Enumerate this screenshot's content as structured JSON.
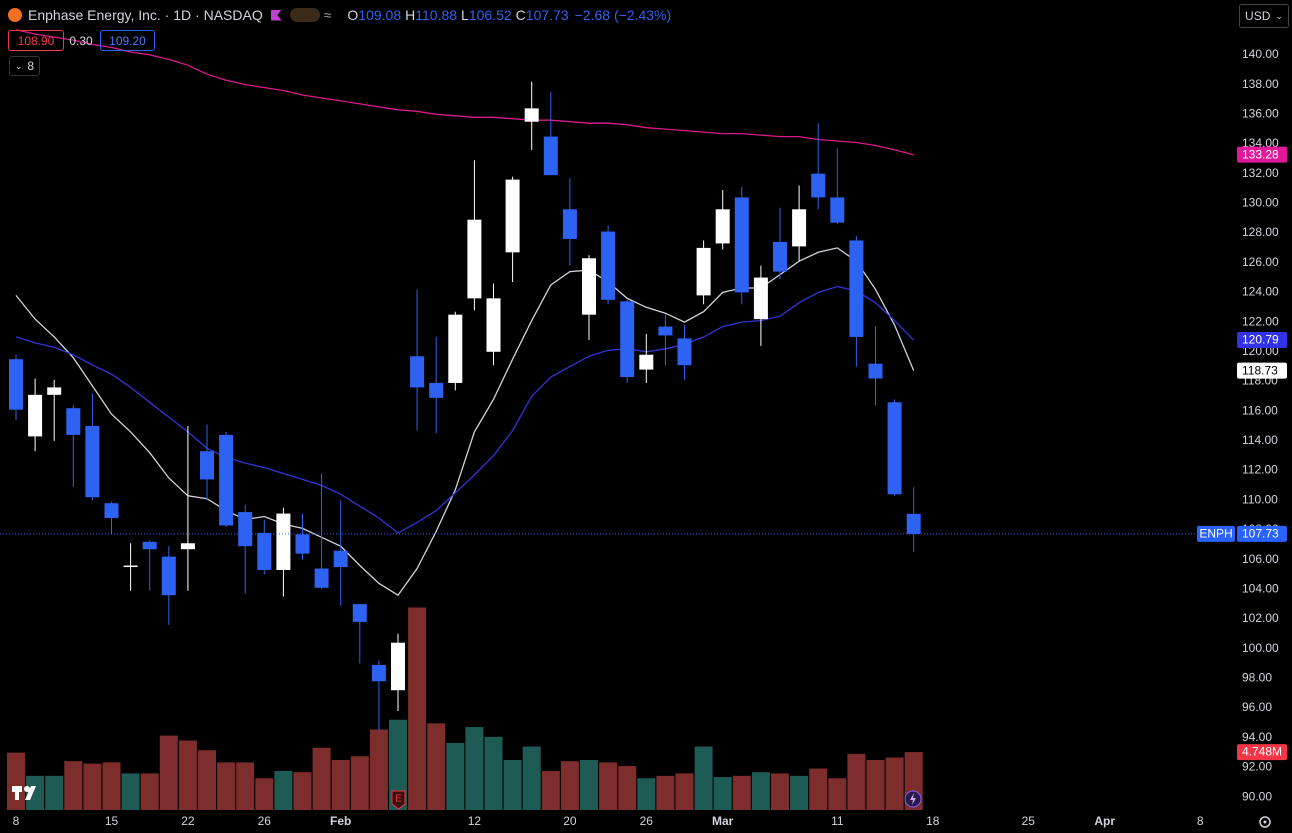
{
  "chart_data": {
    "type": "candlestick",
    "title": "Enphase Energy, Inc. · 1D · NASDAQ",
    "symbol": "ENPH",
    "currency": "USD",
    "ohlc_letters": [
      "O",
      "H",
      "L",
      "C"
    ],
    "change": "−2.68 (−2.43%)",
    "bid": "108.90",
    "spread": "0.30",
    "ask": "109.20",
    "indicator_count": "8",
    "earnings_marker": "E",
    "categories": [
      "8",
      null,
      null,
      null,
      null,
      "15",
      null,
      null,
      null,
      "22",
      null,
      null,
      null,
      "26",
      null,
      null,
      null,
      "Feb",
      null,
      null,
      null,
      null,
      null,
      null,
      "12",
      null,
      null,
      null,
      null,
      "20",
      null,
      null,
      null,
      "26",
      null,
      null,
      null,
      "Mar",
      null,
      null,
      null,
      null,
      null,
      "11",
      null,
      null,
      null,
      null,
      "18",
      null,
      null,
      null,
      null,
      "25",
      null,
      null,
      null,
      "Apr",
      null,
      null,
      null,
      null,
      "8"
    ],
    "open": [
      119.5,
      114.3,
      117.1,
      116.2,
      115.0,
      109.8,
      105.5,
      107.2,
      106.2,
      106.7,
      113.3,
      114.4,
      109.2,
      107.8,
      105.3,
      107.7,
      105.4,
      106.6,
      103.0,
      98.9,
      97.2,
      119.7,
      117.9,
      117.9,
      123.6,
      120.0,
      126.7,
      135.5,
      134.5,
      129.6,
      122.5,
      128.1,
      123.4,
      118.8,
      121.7,
      120.9,
      123.8,
      127.3,
      130.4,
      122.2,
      127.4,
      127.1,
      132.0,
      130.4,
      127.5,
      119.2,
      116.6,
      109.08,
      null,
      null,
      null,
      null,
      null,
      null,
      null,
      null,
      null,
      null,
      null,
      null,
      null,
      null,
      null
    ],
    "high": [
      119.8,
      118.2,
      118.1,
      116.4,
      117.2,
      109.9,
      107.1,
      107.3,
      106.9,
      115.0,
      115.1,
      114.6,
      109.7,
      108.7,
      109.5,
      109.1,
      111.8,
      110.0,
      103.0,
      99.2,
      101.0,
      124.2,
      121.0,
      122.7,
      132.9,
      124.6,
      131.8,
      138.2,
      137.5,
      131.7,
      126.5,
      128.5,
      123.5,
      121.2,
      122.5,
      121.8,
      127.5,
      130.9,
      131.1,
      125.8,
      129.7,
      131.2,
      135.4,
      133.7,
      127.8,
      121.7,
      116.8,
      110.88,
      null,
      null,
      null,
      null,
      null,
      null,
      null,
      null,
      null,
      null,
      null,
      null,
      null,
      null,
      null
    ],
    "low": [
      115.4,
      113.3,
      114.0,
      110.9,
      110.0,
      107.7,
      103.9,
      103.9,
      101.6,
      103.9,
      110.0,
      108.2,
      103.7,
      105.0,
      103.5,
      106.0,
      104.0,
      102.9,
      99.0,
      94.5,
      95.8,
      114.7,
      114.5,
      117.4,
      122.8,
      119.1,
      124.7,
      133.6,
      131.9,
      125.8,
      120.8,
      123.2,
      117.9,
      117.9,
      119.1,
      118.1,
      123.2,
      126.9,
      123.2,
      120.4,
      124.9,
      126.1,
      129.6,
      128.6,
      119.0,
      116.4,
      110.3,
      106.52,
      null,
      null,
      null,
      null,
      null,
      null,
      null,
      null,
      null,
      null,
      null,
      null,
      null,
      null,
      null
    ],
    "close": [
      116.1,
      117.1,
      117.6,
      114.4,
      110.2,
      108.8,
      105.6,
      106.7,
      103.6,
      107.1,
      111.4,
      108.3,
      106.9,
      105.3,
      109.1,
      106.4,
      104.1,
      105.5,
      101.8,
      97.8,
      100.4,
      117.6,
      116.9,
      122.5,
      128.9,
      123.6,
      131.6,
      136.4,
      131.9,
      127.6,
      126.3,
      123.5,
      118.3,
      119.8,
      121.1,
      119.1,
      127.0,
      129.6,
      124.0,
      125.0,
      125.4,
      129.6,
      130.4,
      128.7,
      121.0,
      118.2,
      110.4,
      107.73,
      null,
      null,
      null,
      null,
      null,
      null,
      null,
      null,
      null,
      null,
      null,
      null,
      null,
      null,
      null
    ],
    "up_color": "#ffffff",
    "down_color": "#2e62f2",
    "series": [
      {
        "color": "#d81b8c",
        "values": [
          141.7,
          141.4,
          141.2,
          141.0,
          140.7,
          140.5,
          140.2,
          140.0,
          139.7,
          139.3,
          138.7,
          138.3,
          138.0,
          137.8,
          137.6,
          137.3,
          137.1,
          136.9,
          136.7,
          136.5,
          136.3,
          136.2,
          136.0,
          135.9,
          135.8,
          135.8,
          135.7,
          135.6,
          135.6,
          135.5,
          135.4,
          135.4,
          135.3,
          135.1,
          135.0,
          134.9,
          134.8,
          134.7,
          134.7,
          134.6,
          134.5,
          134.5,
          134.3,
          134.2,
          134.1,
          133.9,
          133.6,
          133.28,
          null,
          null,
          null,
          null,
          null,
          null,
          null,
          null,
          null,
          null,
          null,
          null,
          null,
          null,
          null
        ],
        "tag_color": "#e0199a",
        "tag_text": "#ffffff"
      },
      {
        "color": "#d1d4dc",
        "values": [
          123.8,
          122.2,
          121.0,
          119.6,
          117.7,
          115.8,
          114.6,
          113.2,
          111.5,
          110.3,
          110.1,
          109.3,
          108.7,
          108.9,
          108.4,
          108.1,
          107.5,
          106.9,
          105.6,
          104.4,
          103.6,
          105.4,
          107.9,
          110.7,
          114.6,
          116.8,
          119.5,
          122.1,
          124.5,
          125.4,
          125.5,
          124.7,
          123.6,
          123.0,
          122.6,
          122.0,
          122.7,
          124.0,
          124.3,
          124.3,
          125.2,
          126.1,
          126.7,
          127.0,
          126.1,
          124.2,
          121.8,
          118.73,
          null,
          null,
          null,
          null,
          null,
          null,
          null,
          null,
          null,
          null,
          null,
          null,
          null,
          null,
          null
        ],
        "tag_color": "#ffffff",
        "tag_text": "#000000"
      },
      {
        "color": "#2f36d6",
        "values": [
          121.0,
          120.6,
          120.3,
          119.8,
          119.1,
          118.5,
          117.6,
          116.6,
          115.6,
          114.6,
          113.5,
          112.9,
          112.5,
          112.2,
          111.8,
          111.4,
          111.0,
          110.4,
          109.6,
          108.8,
          107.8,
          108.5,
          109.3,
          110.5,
          111.7,
          113.0,
          114.7,
          117.0,
          118.3,
          119.0,
          119.7,
          120.1,
          120.2,
          120.0,
          120.2,
          120.5,
          121.0,
          121.7,
          122.0,
          122.1,
          122.4,
          123.3,
          124.0,
          124.4,
          124.1,
          123.3,
          122.1,
          120.79,
          null,
          null,
          null,
          null,
          null,
          null,
          null,
          null,
          null,
          null,
          null,
          null,
          null,
          null,
          null
        ],
        "tag_color": "#3232e6",
        "tag_text": "#ffffff"
      }
    ],
    "volume": {
      "values": [
        4.7,
        2.8,
        2.8,
        4.0,
        3.8,
        3.9,
        3.0,
        3.0,
        6.1,
        5.7,
        4.9,
        3.9,
        3.9,
        2.6,
        3.2,
        3.1,
        5.1,
        4.1,
        4.4,
        6.6,
        7.4,
        16.6,
        7.1,
        5.5,
        6.8,
        6.0,
        4.1,
        5.2,
        3.2,
        4.0,
        4.1,
        3.9,
        3.6,
        2.6,
        2.8,
        3.0,
        5.2,
        2.7,
        2.8,
        3.1,
        3.0,
        2.8,
        3.4,
        2.6,
        4.6,
        4.1,
        4.3,
        4.748,
        null,
        null,
        null,
        null,
        null,
        null,
        null,
        null,
        null,
        null,
        null,
        null,
        null,
        null,
        null
      ],
      "value_labels": [
        null,
        null,
        null,
        null,
        null,
        null,
        null,
        null,
        null,
        null,
        null,
        null,
        null,
        null,
        null,
        null,
        null,
        null,
        null,
        null,
        null,
        null,
        null,
        null,
        null,
        null,
        null,
        null,
        null,
        null,
        null,
        null,
        null,
        null,
        null,
        null,
        null,
        null,
        null,
        null,
        null,
        null,
        null,
        null,
        null,
        null,
        null,
        "4.748M",
        null,
        null,
        null,
        null,
        null,
        null,
        null,
        null,
        null,
        null,
        null,
        null,
        null,
        null,
        null
      ],
      "colors": [
        "#7d2e2c",
        "#1e5b55",
        "#1e5b55",
        "#7d2e2c",
        "#7d2e2c",
        "#7d2e2c",
        "#1e5b55",
        "#7d2e2c",
        "#7d2e2c",
        "#7d2e2c",
        "#7d2e2c",
        "#7d2e2c",
        "#7d2e2c",
        "#7d2e2c",
        "#1e5b55",
        "#7d2e2c",
        "#7d2e2c",
        "#7d2e2c",
        "#7d2e2c",
        "#7d2e2c",
        "#1e5b55",
        "#7d2e2c",
        "#7d2e2c",
        "#1e5b55",
        "#1e5b55",
        "#1e5b55",
        "#1e5b55",
        "#1e5b55",
        "#7d2e2c",
        "#7d2e2c",
        "#1e5b55",
        "#7d2e2c",
        "#7d2e2c",
        "#1e5b55",
        "#7d2e2c",
        "#7d2e2c",
        "#1e5b55",
        "#1e5b55",
        "#7d2e2c",
        "#1e5b55",
        "#7d2e2c",
        "#1e5b55",
        "#7d2e2c",
        "#7d2e2c",
        "#7d2e2c",
        "#7d2e2c",
        "#7d2e2c",
        "#7d2e2c",
        null,
        null,
        null,
        null,
        null,
        null,
        null,
        null,
        null,
        null,
        null,
        null,
        null,
        null,
        null
      ],
      "tag_color": "#f23645"
    },
    "ylim": [
      89.13,
      143.7
    ],
    "yticks": [
      {
        "value": 90,
        "label": "90.00"
      },
      {
        "value": 92,
        "label": "92.00"
      },
      {
        "value": 94,
        "label": "94.00"
      },
      {
        "value": 96,
        "label": "96.00"
      },
      {
        "value": 98,
        "label": "98.00"
      },
      {
        "value": 100,
        "label": "100.00"
      },
      {
        "value": 102,
        "label": "102.00"
      },
      {
        "value": 104,
        "label": "104.00"
      },
      {
        "value": 106,
        "label": "106.00"
      },
      {
        "value": 108,
        "label": "108.00"
      },
      {
        "value": 110,
        "label": "110.00"
      },
      {
        "value": 112,
        "label": "112.00"
      },
      {
        "value": 114,
        "label": "114.00"
      },
      {
        "value": 116,
        "label": "116.00"
      },
      {
        "value": 118,
        "label": "118.00"
      },
      {
        "value": 120,
        "label": "120.00"
      },
      {
        "value": 122,
        "label": "122.00"
      },
      {
        "value": 124,
        "label": "124.00"
      },
      {
        "value": 126,
        "label": "126.00"
      },
      {
        "value": 128,
        "label": "128.00"
      },
      {
        "value": 130,
        "label": "130.00"
      },
      {
        "value": 132,
        "label": "132.00"
      },
      {
        "value": 134,
        "label": "134.00"
      },
      {
        "value": 136,
        "label": "136.00"
      },
      {
        "value": 138,
        "label": "138.00"
      },
      {
        "value": 140,
        "label": "140.00"
      }
    ],
    "grid": false,
    "last_tag_color": "#2962ff"
  }
}
